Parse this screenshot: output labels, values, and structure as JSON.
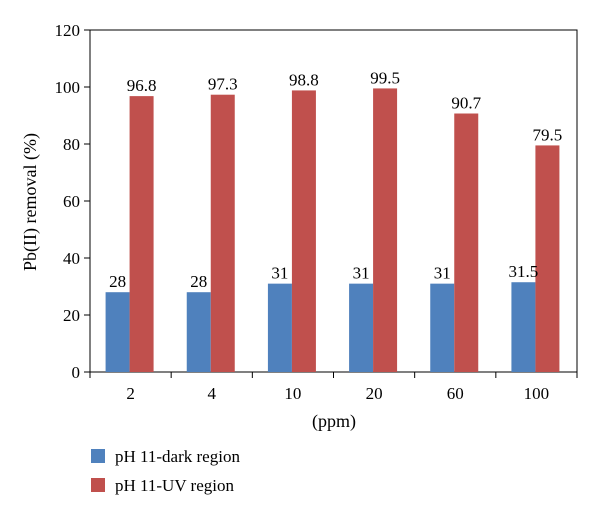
{
  "chart_data": {
    "type": "bar",
    "title": "",
    "xlabel": "(ppm)",
    "ylabel": "Pb(II) removal (%)",
    "ylim": [
      0,
      120
    ],
    "yticks": [
      0,
      20,
      40,
      60,
      80,
      100,
      120
    ],
    "categories": [
      "2",
      "4",
      "10",
      "20",
      "60",
      "100"
    ],
    "series": [
      {
        "name": "pH 11-dark region",
        "color": "#4f81bd",
        "values": [
          28,
          28,
          31,
          31,
          31,
          31.5
        ],
        "labels": [
          "28",
          "28",
          "31",
          "31",
          "31",
          "31.5"
        ]
      },
      {
        "name": "pH 11-UV region",
        "color": "#c0504d",
        "values": [
          96.8,
          97.3,
          98.8,
          99.5,
          90.7,
          79.5
        ],
        "labels": [
          "96.8",
          "97.3",
          "98.8",
          "99.5",
          "90.7",
          "79.5"
        ]
      }
    ],
    "legend_position": "bottom-left",
    "grid": false
  }
}
